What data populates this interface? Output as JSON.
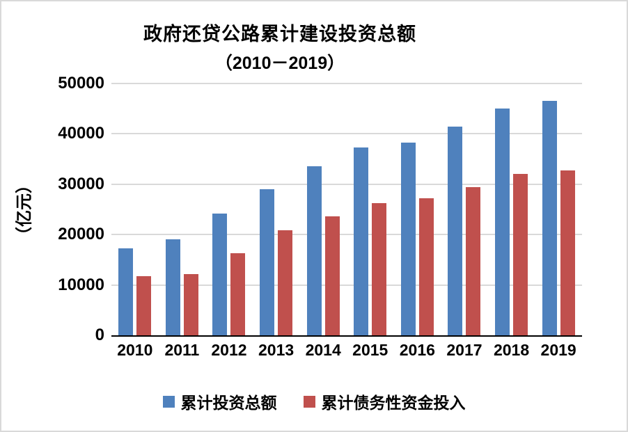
{
  "frame": {
    "background": "#ffffff",
    "border_color": "#d9d9d9",
    "axis_color": "#000000",
    "gridline_color": "#d9d9d9"
  },
  "chart_data": {
    "type": "bar",
    "title_line1": "政府还贷公路累计建设投资总额",
    "title_line2": "（2010－2019）",
    "ylabel": "（亿元）",
    "xlabel": "",
    "categories": [
      "2010",
      "2011",
      "2012",
      "2013",
      "2014",
      "2015",
      "2016",
      "2017",
      "2018",
      "2019"
    ],
    "series": [
      {
        "name": "累计投资总额",
        "color": "#4F81BD",
        "values": [
          17300,
          19000,
          24200,
          29000,
          33500,
          37300,
          38200,
          41500,
          45000,
          46500
        ]
      },
      {
        "name": "累计债务性资金投入",
        "color": "#C0504D",
        "values": [
          11700,
          12100,
          16300,
          20800,
          23600,
          26300,
          27200,
          29400,
          32000,
          32700
        ]
      }
    ],
    "ylim": [
      0,
      50000
    ],
    "ytick_step": 10000,
    "yticks": [
      "0",
      "10000",
      "20000",
      "30000",
      "40000",
      "50000"
    ],
    "grid": true,
    "legend_position": "bottom"
  }
}
